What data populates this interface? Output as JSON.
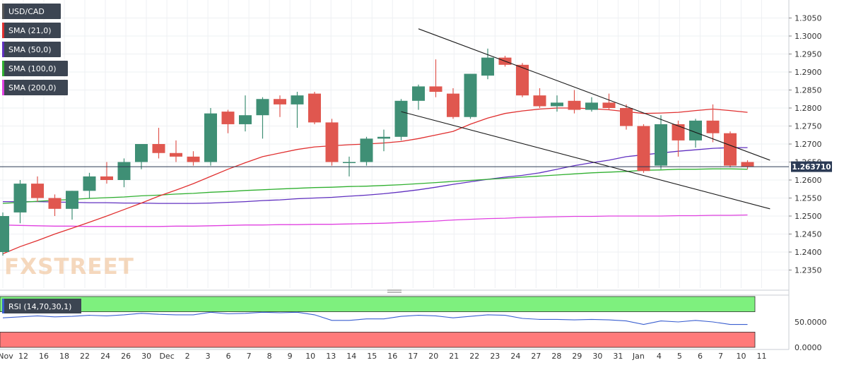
{
  "legend": [
    {
      "label": "USD/CAD",
      "color": "#555555"
    },
    {
      "label": "SMA (21,0)",
      "color": "#e03030"
    },
    {
      "label": "SMA (50,0)",
      "color": "#6030c0"
    },
    {
      "label": "SMA (100,0)",
      "color": "#30b030"
    },
    {
      "label": "SMA (200,0)",
      "color": "#e040e0"
    }
  ],
  "watermark": "FXSTREET",
  "current_price_label": "1.263710",
  "chart_data": {
    "type": "candlestick",
    "symbol": "USD/CAD",
    "ylim": [
      1.23,
      1.31
    ],
    "y_ticks": [
      "1.2350",
      "1.2400",
      "1.2450",
      "1.2500",
      "1.2550",
      "1.2600",
      "1.2650",
      "1.2700",
      "1.2750",
      "1.2800",
      "1.2850",
      "1.2900",
      "1.2950",
      "1.3000",
      "1.3050"
    ],
    "x_labels": [
      "Nov",
      "12",
      "16",
      "18",
      "22",
      "24",
      "26",
      "30",
      "Dec",
      "2",
      "3",
      "6",
      "7",
      "8",
      "9",
      "10",
      "13",
      "14",
      "15",
      "16",
      "17",
      "20",
      "21",
      "22",
      "23",
      "24",
      "27",
      "28",
      "29",
      "30",
      "31",
      "Jan",
      "4",
      "5",
      "6",
      "7",
      "10",
      "11"
    ],
    "current_price": 1.26371,
    "colors": {
      "up": "#3f8f75",
      "down": "#e0574f",
      "rsi_line": "#3a5fd0",
      "overbought": "#7ef07e",
      "oversold": "#ff7a7a"
    },
    "candles": [
      {
        "o": 1.24,
        "h": 1.251,
        "l": 1.239,
        "c": 1.25
      },
      {
        "o": 1.251,
        "h": 1.26,
        "l": 1.248,
        "c": 1.259
      },
      {
        "o": 1.259,
        "h": 1.261,
        "l": 1.254,
        "c": 1.255
      },
      {
        "o": 1.255,
        "h": 1.256,
        "l": 1.25,
        "c": 1.252
      },
      {
        "o": 1.252,
        "h": 1.257,
        "l": 1.249,
        "c": 1.257
      },
      {
        "o": 1.257,
        "h": 1.262,
        "l": 1.255,
        "c": 1.261
      },
      {
        "o": 1.261,
        "h": 1.265,
        "l": 1.259,
        "c": 1.26
      },
      {
        "o": 1.26,
        "h": 1.266,
        "l": 1.258,
        "c": 1.265
      },
      {
        "o": 1.265,
        "h": 1.27,
        "l": 1.263,
        "c": 1.27
      },
      {
        "o": 1.27,
        "h": 1.2745,
        "l": 1.266,
        "c": 1.2675
      },
      {
        "o": 1.2675,
        "h": 1.271,
        "l": 1.265,
        "c": 1.2665
      },
      {
        "o": 1.2665,
        "h": 1.268,
        "l": 1.264,
        "c": 1.265
      },
      {
        "o": 1.265,
        "h": 1.28,
        "l": 1.264,
        "c": 1.2785
      },
      {
        "o": 1.279,
        "h": 1.2795,
        "l": 1.273,
        "c": 1.2755
      },
      {
        "o": 1.2755,
        "h": 1.2835,
        "l": 1.2735,
        "c": 1.278
      },
      {
        "o": 1.278,
        "h": 1.283,
        "l": 1.2715,
        "c": 1.2825
      },
      {
        "o": 1.2825,
        "h": 1.2835,
        "l": 1.2775,
        "c": 1.281
      },
      {
        "o": 1.281,
        "h": 1.2845,
        "l": 1.2745,
        "c": 1.2835
      },
      {
        "o": 1.284,
        "h": 1.2845,
        "l": 1.2755,
        "c": 1.276
      },
      {
        "o": 1.276,
        "h": 1.277,
        "l": 1.264,
        "c": 1.265
      },
      {
        "o": 1.265,
        "h": 1.2665,
        "l": 1.261,
        "c": 1.265
      },
      {
        "o": 1.265,
        "h": 1.272,
        "l": 1.264,
        "c": 1.2715
      },
      {
        "o": 1.2715,
        "h": 1.274,
        "l": 1.268,
        "c": 1.272
      },
      {
        "o": 1.272,
        "h": 1.2825,
        "l": 1.271,
        "c": 1.282
      },
      {
        "o": 1.282,
        "h": 1.2865,
        "l": 1.2795,
        "c": 1.286
      },
      {
        "o": 1.286,
        "h": 1.2935,
        "l": 1.283,
        "c": 1.2845
      },
      {
        "o": 1.284,
        "h": 1.2855,
        "l": 1.277,
        "c": 1.2775
      },
      {
        "o": 1.2775,
        "h": 1.2895,
        "l": 1.277,
        "c": 1.2895
      },
      {
        "o": 1.289,
        "h": 1.2965,
        "l": 1.288,
        "c": 1.294
      },
      {
        "o": 1.294,
        "h": 1.2945,
        "l": 1.2915,
        "c": 1.292
      },
      {
        "o": 1.292,
        "h": 1.2925,
        "l": 1.283,
        "c": 1.2835
      },
      {
        "o": 1.2835,
        "h": 1.2855,
        "l": 1.28,
        "c": 1.2805
      },
      {
        "o": 1.2805,
        "h": 1.2835,
        "l": 1.279,
        "c": 1.2815
      },
      {
        "o": 1.282,
        "h": 1.285,
        "l": 1.2785,
        "c": 1.2795
      },
      {
        "o": 1.2795,
        "h": 1.283,
        "l": 1.279,
        "c": 1.2815
      },
      {
        "o": 1.2815,
        "h": 1.284,
        "l": 1.2795,
        "c": 1.28
      },
      {
        "o": 1.28,
        "h": 1.281,
        "l": 1.274,
        "c": 1.275
      },
      {
        "o": 1.275,
        "h": 1.2755,
        "l": 1.262,
        "c": 1.2625
      },
      {
        "o": 1.264,
        "h": 1.278,
        "l": 1.263,
        "c": 1.2755
      },
      {
        "o": 1.2755,
        "h": 1.2765,
        "l": 1.2665,
        "c": 1.271
      },
      {
        "o": 1.271,
        "h": 1.277,
        "l": 1.269,
        "c": 1.2765
      },
      {
        "o": 1.2765,
        "h": 1.281,
        "l": 1.2705,
        "c": 1.273
      },
      {
        "o": 1.273,
        "h": 1.2735,
        "l": 1.2635,
        "c": 1.264
      },
      {
        "o": 1.265,
        "h": 1.2655,
        "l": 1.263,
        "c": 1.2637
      }
    ],
    "sma21": [
      1.2395,
      1.2415,
      1.2432,
      1.245,
      1.2466,
      1.2483,
      1.25,
      1.2518,
      1.2536,
      1.2555,
      1.2572,
      1.259,
      1.261,
      1.263,
      1.2648,
      1.2665,
      1.2675,
      1.2685,
      1.2692,
      1.2695,
      1.2698,
      1.27,
      1.2703,
      1.2707,
      1.2715,
      1.2725,
      1.2735,
      1.2755,
      1.2772,
      1.2785,
      1.2792,
      1.2797,
      1.28,
      1.28,
      1.2798,
      1.2795,
      1.279,
      1.2785,
      1.2786,
      1.2788,
      1.2793,
      1.2797,
      1.2793,
      1.2788
    ],
    "sma50": [
      1.254,
      1.254,
      1.254,
      1.2539,
      1.2538,
      1.2537,
      1.2537,
      1.2536,
      1.2536,
      1.2535,
      1.2535,
      1.2535,
      1.2536,
      1.2538,
      1.254,
      1.2543,
      1.2545,
      1.2548,
      1.255,
      1.2552,
      1.2555,
      1.2558,
      1.2562,
      1.2567,
      1.2573,
      1.258,
      1.2588,
      1.2595,
      1.2602,
      1.2608,
      1.2613,
      1.262,
      1.263,
      1.264,
      1.2648,
      1.2655,
      1.2665,
      1.267,
      1.2675,
      1.268,
      1.2684,
      1.2688,
      1.269,
      1.269
    ],
    "sma100": [
      1.2535,
      1.2538,
      1.2541,
      1.2544,
      1.2546,
      1.2549,
      1.2551,
      1.2553,
      1.2556,
      1.2558,
      1.2561,
      1.2563,
      1.2566,
      1.2568,
      1.2571,
      1.2573,
      1.2575,
      1.2577,
      1.2579,
      1.258,
      1.2582,
      1.2583,
      1.2585,
      1.2587,
      1.259,
      1.2593,
      1.2596,
      1.2599,
      1.2602,
      1.2605,
      1.2608,
      1.2611,
      1.2614,
      1.2617,
      1.262,
      1.2622,
      1.2624,
      1.2627,
      1.2628,
      1.263,
      1.263,
      1.2631,
      1.2631,
      1.263
    ],
    "sma200": [
      1.2475,
      1.2474,
      1.2473,
      1.2472,
      1.2472,
      1.2471,
      1.2471,
      1.2471,
      1.2471,
      1.2471,
      1.2472,
      1.2472,
      1.2473,
      1.2474,
      1.2475,
      1.2475,
      1.2476,
      1.2476,
      1.2477,
      1.2477,
      1.2478,
      1.2479,
      1.248,
      1.2482,
      1.2484,
      1.2486,
      1.2489,
      1.2491,
      1.2493,
      1.2494,
      1.2496,
      1.2497,
      1.2498,
      1.2499,
      1.2499,
      1.25,
      1.25,
      1.25,
      1.25,
      1.2501,
      1.2501,
      1.2502,
      1.2502,
      1.2503
    ],
    "trendlines": [
      {
        "from": {
          "i": 24,
          "v": 1.302
        },
        "to": {
          "i": 44.3,
          "v": 1.2655
        }
      },
      {
        "from": {
          "i": 23,
          "v": 1.279
        },
        "to": {
          "i": 44.3,
          "v": 1.252
        }
      }
    ],
    "rsi": {
      "label": "RSI (14,70,30,1)",
      "ylim": [
        0,
        100
      ],
      "y_ticks": [
        "0.0000",
        "50.0000"
      ],
      "overbought": 70,
      "oversold": 30,
      "values": [
        58,
        60,
        62,
        60,
        61,
        63,
        62,
        64,
        67,
        65,
        64,
        64,
        69,
        66,
        67,
        69,
        68,
        69,
        64,
        53,
        53,
        56,
        56,
        61,
        63,
        62,
        58,
        61,
        64,
        63,
        57,
        55,
        55,
        54,
        55,
        54,
        52,
        45,
        52,
        50,
        53,
        50,
        45,
        45
      ]
    }
  }
}
